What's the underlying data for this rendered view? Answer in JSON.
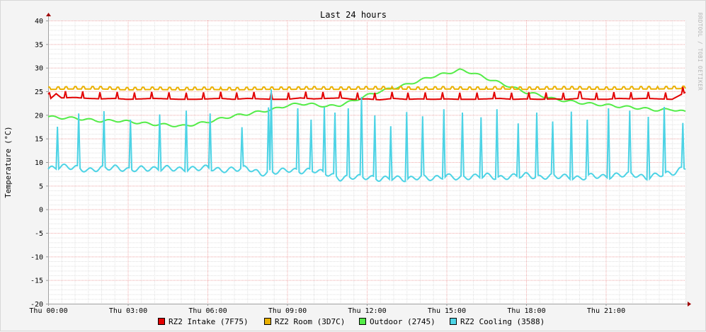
{
  "watermark": "RRDTOOL / TOBI OETIKER",
  "chart_data": {
    "type": "line",
    "title": "Last 24 hours",
    "xlabel": "",
    "ylabel": "Temperature (°C)",
    "ylim": [
      -20,
      40
    ],
    "xlim": [
      0,
      24
    ],
    "x_unit": "hours",
    "yticks": [
      40,
      35,
      30,
      25,
      20,
      15,
      10,
      5,
      0,
      -5,
      -10,
      -15,
      -20
    ],
    "xticks": [
      {
        "value": 0,
        "label": "Thu 00:00"
      },
      {
        "value": 3,
        "label": "Thu 03:00"
      },
      {
        "value": 6,
        "label": "Thu 06:00"
      },
      {
        "value": 9,
        "label": "Thu 09:00"
      },
      {
        "value": 12,
        "label": "Thu 12:00"
      },
      {
        "value": 15,
        "label": "Thu 15:00"
      },
      {
        "value": 18,
        "label": "Thu 18:00"
      },
      {
        "value": 21,
        "label": "Thu 21:00"
      }
    ],
    "grid": true,
    "legend_position": "bottom",
    "series": [
      {
        "name": "RZ2 Intake (7F75)",
        "color": "#e30000",
        "x": [
          0,
          0.3,
          0.5,
          1,
          1.5,
          2,
          2.5,
          3,
          3.5,
          4,
          4.5,
          5,
          5.5,
          6,
          6.5,
          7,
          7.5,
          8,
          8.5,
          9,
          9.5,
          10,
          10.5,
          11,
          11.5,
          12,
          12.5,
          13,
          13.5,
          14,
          14.5,
          15,
          15.5,
          16,
          16.5,
          17,
          17.5,
          18,
          18.5,
          19,
          19.5,
          20,
          20.5,
          21,
          21.5,
          22,
          22.5,
          23,
          23.5,
          24
        ],
        "values": [
          23.0,
          24.5,
          23.6,
          23.7,
          23.5,
          23.4,
          23.5,
          23.3,
          23.4,
          23.5,
          23.4,
          23.3,
          23.3,
          23.4,
          23.5,
          23.3,
          23.5,
          23.4,
          23.3,
          23.3,
          23.6,
          23.4,
          23.5,
          23.6,
          23.3,
          23.4,
          23.2,
          23.5,
          23.3,
          23.4,
          23.3,
          23.4,
          23.3,
          23.3,
          23.4,
          23.5,
          23.3,
          23.4,
          23.3,
          23.4,
          23.3,
          23.5,
          23.3,
          23.3,
          23.5,
          23.4,
          23.5,
          23.4,
          23.3,
          24.8
        ]
      },
      {
        "name": "RZ2 Room (3D7C)",
        "color": "#eab000",
        "x": [
          0,
          1,
          2,
          3,
          4,
          5,
          6,
          7,
          8,
          9,
          10,
          11,
          12,
          13,
          14,
          15,
          16,
          17,
          18,
          19,
          20,
          21,
          22,
          23,
          24
        ],
        "values": [
          25.4,
          25.5,
          25.5,
          25.3,
          25.4,
          25.3,
          25.4,
          25.3,
          25.4,
          25.4,
          25.5,
          25.4,
          25.5,
          25.5,
          25.4,
          25.5,
          25.4,
          25.5,
          25.4,
          25.5,
          25.5,
          25.4,
          25.5,
          25.5,
          25.6
        ]
      },
      {
        "name": "Outdoor (2745)",
        "color": "#54ec48",
        "x": [
          0,
          0.5,
          1,
          1.5,
          2,
          2.5,
          3,
          3.5,
          4,
          4.5,
          5,
          5.5,
          6,
          6.5,
          7,
          7.5,
          8,
          8.5,
          9,
          9.5,
          10,
          10.5,
          11,
          11.5,
          12,
          12.5,
          13,
          13.5,
          14,
          14.5,
          15,
          15.5,
          16,
          16.5,
          17,
          17.5,
          18,
          18.5,
          19,
          19.5,
          20,
          20.5,
          21,
          21.5,
          22,
          22.5,
          23,
          23.5,
          24
        ],
        "values": [
          19.6,
          19.4,
          19.3,
          19.0,
          18.7,
          18.8,
          18.6,
          18.3,
          18.0,
          17.9,
          17.6,
          18.0,
          18.5,
          19.2,
          19.8,
          20.2,
          20.7,
          21.2,
          22.0,
          22.4,
          22.2,
          21.8,
          22.1,
          23.0,
          24.1,
          25.0,
          25.7,
          26.4,
          27.3,
          28.2,
          28.8,
          29.5,
          28.9,
          27.8,
          26.8,
          25.8,
          24.8,
          24.2,
          23.4,
          23.0,
          22.6,
          22.3,
          22.1,
          21.8,
          21.6,
          21.3,
          21.0,
          21.2,
          20.6
        ]
      },
      {
        "name": "RZ2 Cooling (3588)",
        "color": "#4dd3e5",
        "x": [
          0,
          0.5,
          1,
          1.5,
          2,
          2.5,
          3,
          3.5,
          4,
          4.5,
          5,
          5.5,
          6,
          6.5,
          7,
          7.5,
          8,
          8.5,
          9,
          9.5,
          10,
          10.5,
          11,
          11.5,
          12,
          12.5,
          13,
          13.5,
          14,
          14.5,
          15,
          15.5,
          16,
          16.5,
          17,
          17.5,
          18,
          18.5,
          19,
          19.5,
          20,
          20.5,
          21,
          21.5,
          22,
          22.5,
          23,
          23.5,
          24
        ],
        "values": [
          8.5,
          9.1,
          8.9,
          8.2,
          8.7,
          8.9,
          8.3,
          8.7,
          8.5,
          8.8,
          8.4,
          8.6,
          8.9,
          8.2,
          8.5,
          8.8,
          7.5,
          7.9,
          8.4,
          8.0,
          8.3,
          7.6,
          6.5,
          6.9,
          6.8,
          6.4,
          6.7,
          6.3,
          6.9,
          6.5,
          7.1,
          6.6,
          6.9,
          7.2,
          6.6,
          7.0,
          7.3,
          6.7,
          7.1,
          6.9,
          6.5,
          7.2,
          6.8,
          7.3,
          7.5,
          6.6,
          7.4,
          7.6,
          8.9
        ],
        "spikes": [
          {
            "x": 0.35,
            "y": 17.5
          },
          {
            "x": 1.15,
            "y": 20.3
          },
          {
            "x": 2.1,
            "y": 20.8
          },
          {
            "x": 3.1,
            "y": 19.0
          },
          {
            "x": 4.2,
            "y": 20.1
          },
          {
            "x": 5.2,
            "y": 20.9
          },
          {
            "x": 6.1,
            "y": 20.3
          },
          {
            "x": 7.3,
            "y": 17.4
          },
          {
            "x": 8.3,
            "y": 21.6
          },
          {
            "x": 8.4,
            "y": 25.4
          },
          {
            "x": 9.4,
            "y": 21.4
          },
          {
            "x": 9.9,
            "y": 19.0
          },
          {
            "x": 10.4,
            "y": 21.6
          },
          {
            "x": 10.8,
            "y": 20.5
          },
          {
            "x": 11.3,
            "y": 21.4
          },
          {
            "x": 11.8,
            "y": 23.8
          },
          {
            "x": 12.3,
            "y": 19.9
          },
          {
            "x": 12.9,
            "y": 17.6
          },
          {
            "x": 13.5,
            "y": 20.6
          },
          {
            "x": 14.1,
            "y": 19.7
          },
          {
            "x": 14.9,
            "y": 21.2
          },
          {
            "x": 15.6,
            "y": 20.5
          },
          {
            "x": 16.3,
            "y": 19.5
          },
          {
            "x": 16.9,
            "y": 21.2
          },
          {
            "x": 17.7,
            "y": 18.2
          },
          {
            "x": 18.4,
            "y": 20.5
          },
          {
            "x": 19.0,
            "y": 18.6
          },
          {
            "x": 19.7,
            "y": 20.7
          },
          {
            "x": 20.3,
            "y": 19.0
          },
          {
            "x": 21.1,
            "y": 21.4
          },
          {
            "x": 21.9,
            "y": 20.9
          },
          {
            "x": 22.6,
            "y": 19.6
          },
          {
            "x": 23.2,
            "y": 21.7
          },
          {
            "x": 23.9,
            "y": 18.3
          }
        ]
      }
    ]
  }
}
